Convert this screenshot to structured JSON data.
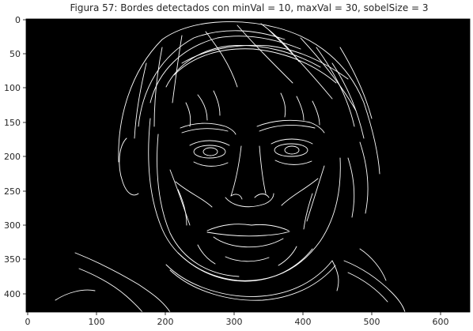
{
  "figure": {
    "title": "Figura 57: Bordes detectados con minVal = 10, maxVal = 30, sobelSize = 3",
    "background_color": "#000000",
    "edge_color": "#ffffff",
    "x_ticks": [
      "0",
      "100",
      "200",
      "300",
      "400",
      "500",
      "600"
    ],
    "y_ticks": [
      "0",
      "50",
      "100",
      "150",
      "200",
      "250",
      "300",
      "350",
      "400"
    ],
    "image_description_icon": "edge-map-image"
  },
  "chart_data": {
    "type": "heatmap",
    "title": "Figura 57: Bordes detectados con minVal = 10, maxVal = 30, sobelSize = 3",
    "xlabel": "",
    "ylabel": "",
    "xlim": [
      0,
      640
    ],
    "ylim": [
      427,
      0
    ],
    "grid": false,
    "colormap": "gray",
    "x_tick_values": [
      0,
      100,
      200,
      300,
      400,
      500,
      600
    ],
    "y_tick_values": [
      0,
      50,
      100,
      150,
      200,
      250,
      300,
      350,
      400
    ]
  }
}
